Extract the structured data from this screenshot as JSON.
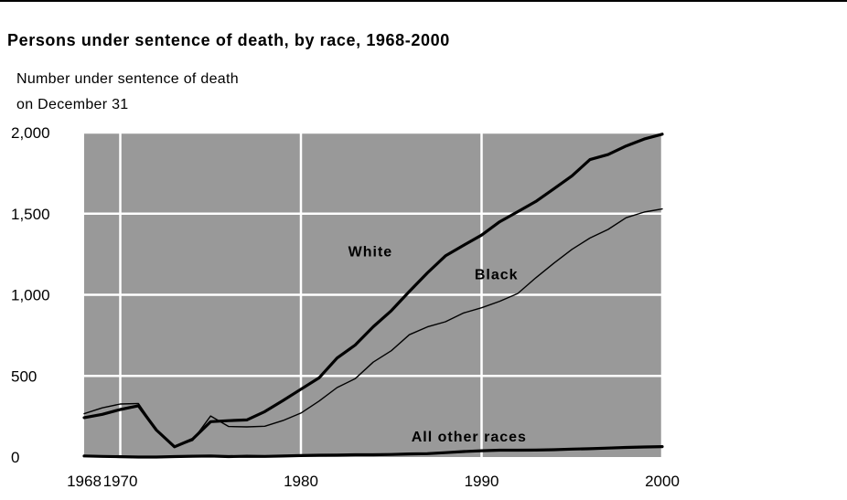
{
  "chart_data": {
    "type": "line",
    "title": "Persons under sentence of death, by race,  1968-2000",
    "ylabel_lines": [
      "Number under sentence of death",
      "on December 31"
    ],
    "xlabel": "",
    "xlim": [
      1968,
      2000
    ],
    "ylim": [
      0,
      2000
    ],
    "x_ticks": [
      {
        "value": 1968,
        "label": "1968"
      },
      {
        "value": 1970,
        "label": "1970"
      },
      {
        "value": 1980,
        "label": "1980"
      },
      {
        "value": 1990,
        "label": "1990"
      },
      {
        "value": 2000,
        "label": "2000"
      }
    ],
    "y_ticks": [
      {
        "value": 0,
        "label": "0"
      },
      {
        "value": 500,
        "label": "500"
      },
      {
        "value": 1000,
        "label": "1,000"
      },
      {
        "value": 1500,
        "label": "1,500"
      },
      {
        "value": 2000,
        "label": "2,000"
      }
    ],
    "x_grid": [
      1970,
      1980,
      1990,
      2000
    ],
    "y_grid": [
      500,
      1000,
      1500,
      2000
    ],
    "grid": true,
    "background_color": "#999999",
    "grid_color": "#ffffff",
    "x": [
      1968,
      1969,
      1970,
      1971,
      1972,
      1973,
      1974,
      1975,
      1976,
      1977,
      1978,
      1979,
      1980,
      1981,
      1982,
      1983,
      1984,
      1985,
      1986,
      1987,
      1988,
      1989,
      1990,
      1991,
      1992,
      1993,
      1994,
      1995,
      1996,
      1997,
      1998,
      1999,
      2000
    ],
    "series": [
      {
        "name": "White",
        "color": "#000000",
        "line_weight": "thick",
        "label_position": {
          "x": 1973.5,
          "y": 1270
        },
        "values": [
          243,
          263,
          293,
          316,
          166,
          63,
          110,
          218,
          224,
          229,
          280,
          348,
          418,
          488,
          610,
          690,
          803,
          902,
          1020,
          1135,
          1240,
          1305,
          1368,
          1450,
          1512,
          1575,
          1653,
          1733,
          1833,
          1864,
          1917,
          1960,
          1990
        ]
      },
      {
        "name": "Black",
        "color": "#000000",
        "line_weight": "thin",
        "label_position": {
          "x": 1980.5,
          "y": 1130
        },
        "values": [
          267,
          303,
          327,
          330,
          168,
          63,
          102,
          253,
          188,
          186,
          190,
          225,
          271,
          345,
          428,
          483,
          585,
          655,
          754,
          802,
          834,
          888,
          920,
          960,
          1008,
          1105,
          1195,
          1280,
          1350,
          1403,
          1475,
          1510,
          1529
        ]
      },
      {
        "name": "All other races",
        "color": "#000000",
        "line_weight": "thick",
        "label_position": {
          "x": 1977,
          "y": 130
        },
        "values": [
          7,
          4,
          2,
          0,
          0,
          3,
          5,
          6,
          3,
          5,
          4,
          6,
          9,
          11,
          12,
          14,
          14,
          16,
          19,
          21,
          27,
          34,
          39,
          42,
          42,
          43,
          45,
          49,
          51,
          55,
          59,
          62,
          64
        ]
      }
    ]
  }
}
